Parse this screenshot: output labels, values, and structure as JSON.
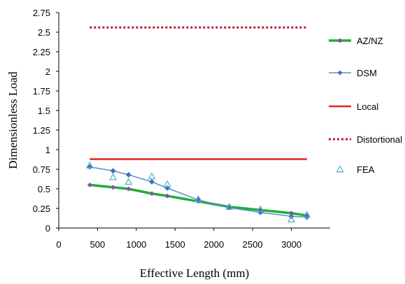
{
  "chart_data": {
    "type": "line",
    "xlabel": "Effective Length (mm)",
    "ylabel": "Dimensionless Load",
    "xlim": [
      0,
      3500
    ],
    "ylim": [
      0,
      2.75
    ],
    "xticks": [
      0,
      500,
      1000,
      1500,
      2000,
      2500,
      3000
    ],
    "yticks": [
      0,
      0.25,
      0.5,
      0.75,
      1,
      1.25,
      1.5,
      1.75,
      2,
      2.25,
      2.5,
      2.75
    ],
    "ytick_labels": [
      "0",
      "0.25",
      "0.5",
      "0.75",
      "1",
      "1.25",
      "1.5",
      "1.75",
      "2",
      "2.25",
      "2.5",
      "2.75"
    ],
    "grid": false,
    "legend_position": "right",
    "series": [
      {
        "name": "AZ/NZ",
        "style": "line-marker",
        "color": "#1FAE3A",
        "marker_color": "#8E4FA0",
        "x": [
          400,
          700,
          900,
          1200,
          1400,
          1800,
          2200,
          2600,
          3000,
          3200
        ],
        "y": [
          0.55,
          0.52,
          0.5,
          0.44,
          0.41,
          0.34,
          0.27,
          0.23,
          0.19,
          0.16
        ]
      },
      {
        "name": "DSM",
        "style": "line-marker",
        "color": "#5B8DC9",
        "marker_color": "#3E72BE",
        "x": [
          400,
          700,
          900,
          1200,
          1400,
          1800,
          2200,
          2600,
          3000,
          3200
        ],
        "y": [
          0.78,
          0.73,
          0.68,
          0.59,
          0.51,
          0.36,
          0.26,
          0.2,
          0.15,
          0.14
        ]
      },
      {
        "name": "Local",
        "style": "line",
        "color": "#E02424",
        "x": [
          400,
          3200
        ],
        "y": [
          0.88,
          0.88
        ]
      },
      {
        "name": "Distortional",
        "style": "dotted",
        "color": "#C0152A",
        "x": [
          400,
          3200
        ],
        "y": [
          2.56,
          2.56
        ]
      },
      {
        "name": "FEA",
        "style": "marker-triangle",
        "color": "#4BB3C9",
        "x": [
          400,
          700,
          900,
          1200,
          1400,
          1800,
          2200,
          2600,
          3000,
          3200
        ],
        "y": [
          0.8,
          0.65,
          0.59,
          0.66,
          0.56,
          0.37,
          0.27,
          0.24,
          0.11,
          0.17
        ]
      }
    ]
  }
}
